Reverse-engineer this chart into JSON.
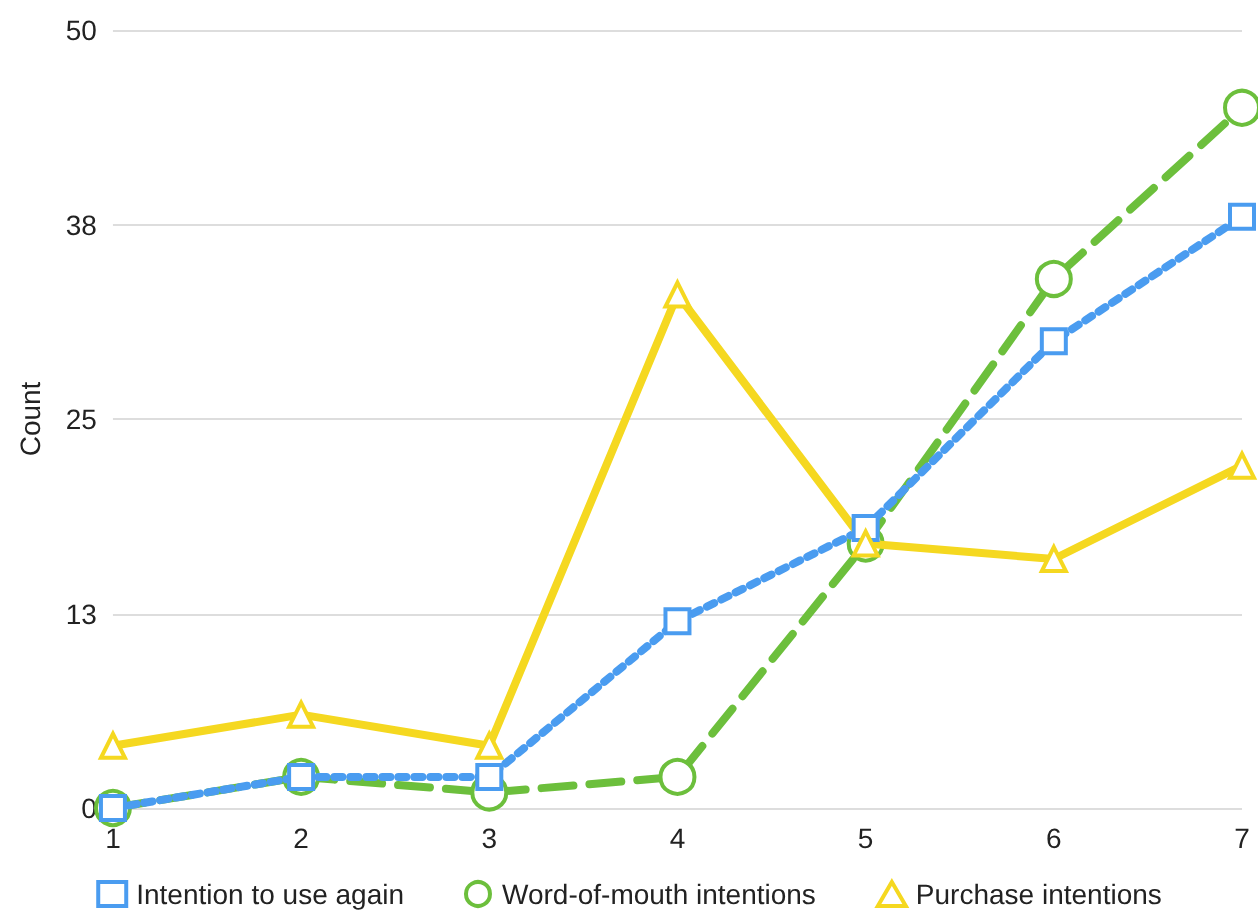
{
  "chart_data": {
    "type": "line",
    "ylabel": "Count",
    "x": [
      1,
      2,
      3,
      4,
      5,
      6,
      7
    ],
    "xlim": [
      1,
      7
    ],
    "xticks": [
      1,
      2,
      3,
      4,
      5,
      6,
      7
    ],
    "ylim": [
      0,
      50
    ],
    "yticks": [
      0,
      {
        "value": 12.5,
        "label": "13"
      },
      25,
      {
        "value": 37.5,
        "label": "38"
      },
      50
    ],
    "grid": "y",
    "legend": "bottom",
    "series": [
      {
        "name": "Intention to use again",
        "color": "#4a9cf0",
        "marker": "square",
        "line_style": "dotted",
        "values": [
          0,
          2,
          2,
          12,
          18,
          30,
          38
        ]
      },
      {
        "name": "Word-of-mouth intentions",
        "color": "#6cbf3c",
        "marker": "circle",
        "line_style": "dashed",
        "values": [
          0,
          2,
          1,
          2,
          17,
          34,
          45
        ]
      },
      {
        "name": "Purchase intentions",
        "color": "#f5d820",
        "marker": "triangle",
        "line_style": "solid",
        "values": [
          4,
          6,
          4,
          33,
          17,
          16,
          22
        ]
      }
    ]
  }
}
